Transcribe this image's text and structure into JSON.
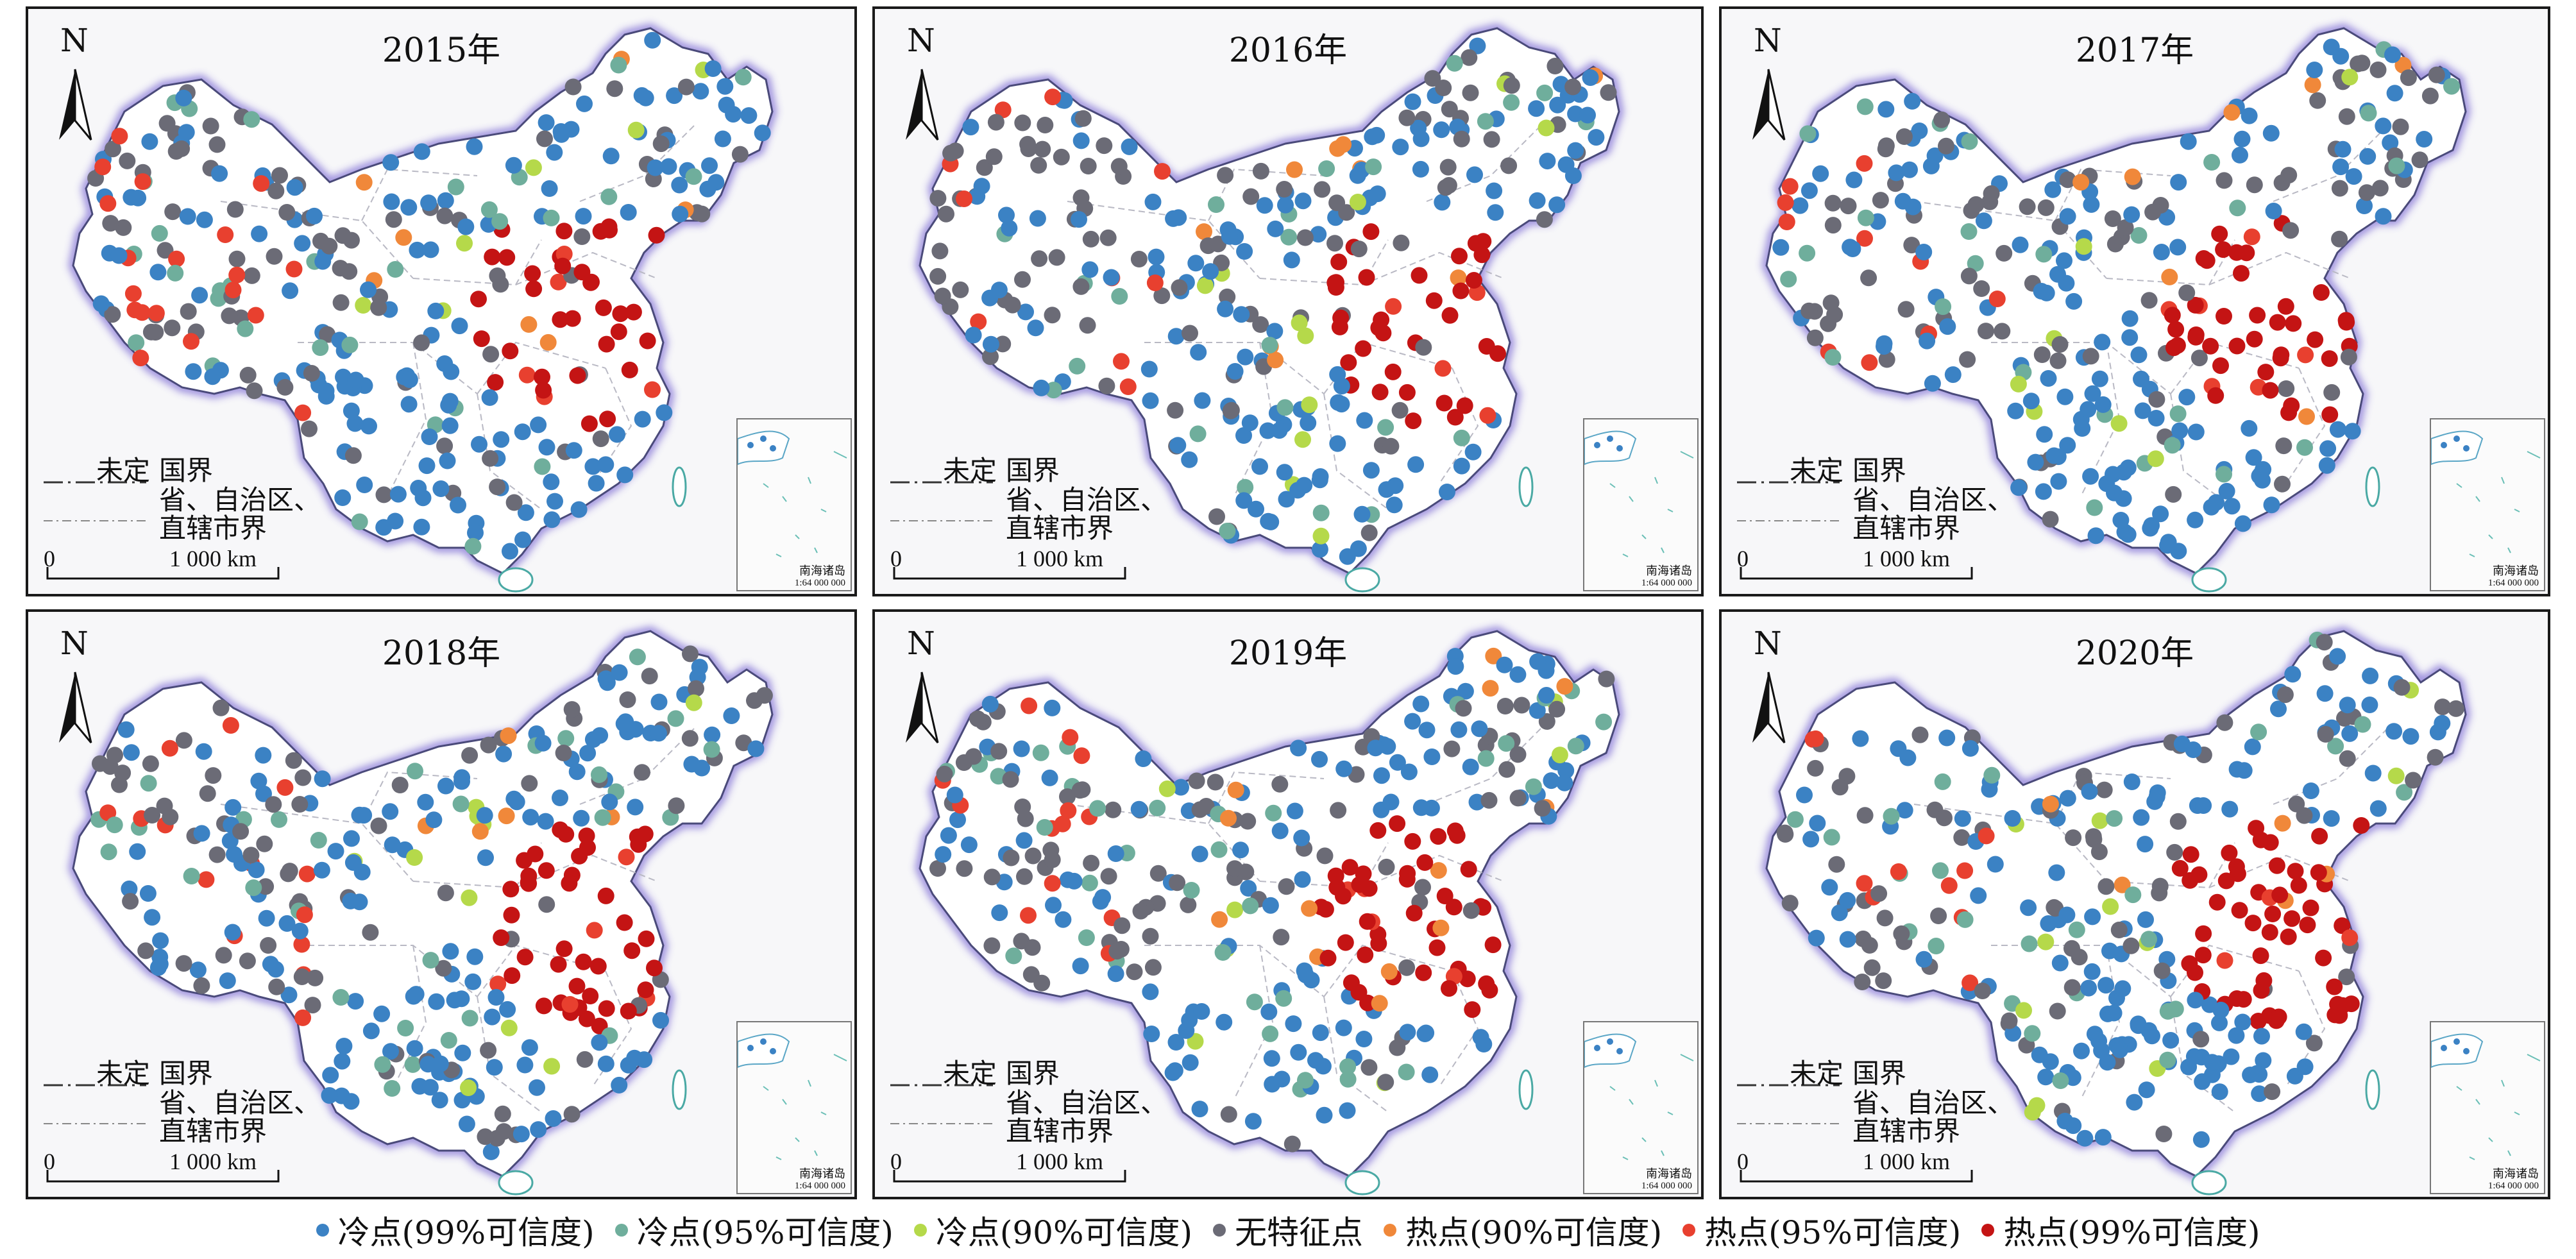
{
  "panels": [
    {
      "year_label": "2015年"
    },
    {
      "year_label": "2016年"
    },
    {
      "year_label": "2017年"
    },
    {
      "year_label": "2018年"
    },
    {
      "year_label": "2019年"
    },
    {
      "year_label": "2020年"
    }
  ],
  "map_legend": {
    "north": "N",
    "undefined_border": "未定",
    "national_border": "国界",
    "provincial_border_line1": "省、自治区、",
    "provincial_border_line2": "直辖市界",
    "scale_zero": "0",
    "scale_distance": "1 000 km",
    "inset_label": "南海诸岛",
    "inset_scale": "1:64 000 000"
  },
  "categories": [
    {
      "key": "cold99",
      "label": "冷点(99%可信度)",
      "color": "#3b82c4"
    },
    {
      "key": "cold95",
      "label": "冷点(95%可信度)",
      "color": "#6fae9c"
    },
    {
      "key": "cold90",
      "label": "冷点(90%可信度)",
      "color": "#b5d94a"
    },
    {
      "key": "none",
      "label": "无特征点",
      "color": "#6b6b76"
    },
    {
      "key": "hot90",
      "label": "热点(90%可信度)",
      "color": "#f0883a"
    },
    {
      "key": "hot95",
      "label": "热点(95%可信度)",
      "color": "#e8402f"
    },
    {
      "key": "hot99",
      "label": "热点(99%可信度)",
      "color": "#c41414"
    }
  ]
}
